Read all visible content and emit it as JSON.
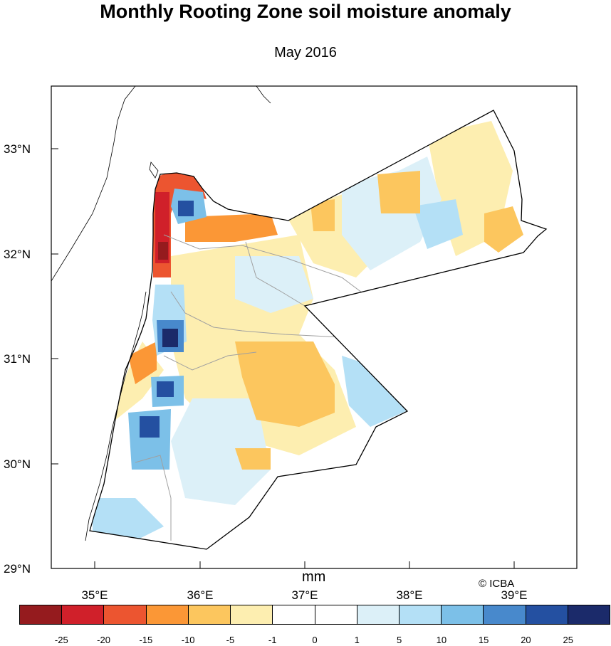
{
  "title": "Monthly Rooting Zone soil moisture anomaly",
  "subtitle": "May 2016",
  "credit": "© ICBA",
  "units": "mm",
  "lon_labels": [
    "35°E",
    "36°E",
    "37°E",
    "38°E",
    "39°E"
  ],
  "lat_labels": [
    "33°N",
    "32°N",
    "31°N",
    "30°N",
    "29°N"
  ],
  "colorbar": {
    "labels": [
      "-25",
      "-20",
      "-15",
      "-10",
      "-5",
      "-1",
      "0",
      "1",
      "5",
      "10",
      "15",
      "20",
      "25"
    ],
    "colors": [
      "#951b1e",
      "#d0202a",
      "#ec5530",
      "#fb9736",
      "#fcc65e",
      "#fdeeb0",
      "#ffffff",
      "#ffffff",
      "#dcf0f8",
      "#b4e0f6",
      "#7cc0e8",
      "#4889cc",
      "#2450a1",
      "#1b2a6a"
    ]
  }
}
